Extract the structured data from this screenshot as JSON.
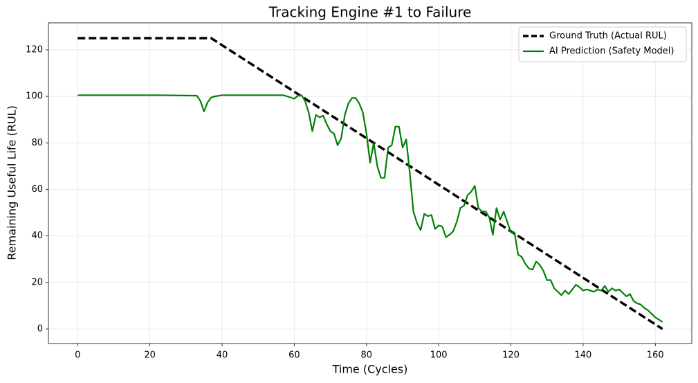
{
  "chart_data": {
    "type": "line",
    "title": "Tracking Engine #1 to Failure",
    "xlabel": "Time (Cycles)",
    "ylabel": "Remaining Useful Life (RUL)",
    "xlim": [
      -8.1,
      170.1
    ],
    "ylim": [
      -6.25,
      131.6
    ],
    "xticks": [
      0,
      20,
      40,
      60,
      80,
      100,
      120,
      140,
      160
    ],
    "yticks": [
      0,
      20,
      40,
      60,
      80,
      100,
      120
    ],
    "grid": true,
    "legend": "upper right",
    "series": [
      {
        "name": "Ground Truth (Actual RUL)",
        "color": "#000000",
        "linestyle": "dashed",
        "x": [
          0,
          37,
          162
        ],
        "values": [
          125,
          125,
          0
        ]
      },
      {
        "name": "AI Prediction (Safety Model)",
        "color": "#008000",
        "linestyle": "solid",
        "x": [
          0,
          23,
          33,
          34,
          35,
          36,
          37,
          38,
          40,
          57,
          58,
          60,
          61,
          62,
          63,
          64,
          65,
          66,
          67,
          68,
          69,
          70,
          71,
          72,
          73,
          74,
          75,
          76,
          77,
          78,
          79,
          80,
          81,
          82,
          83,
          84,
          85,
          86,
          87,
          88,
          89,
          90,
          91,
          92,
          93,
          94,
          95,
          96,
          97,
          98,
          99,
          100,
          101,
          102,
          103,
          104,
          105,
          106,
          107,
          108,
          109,
          110,
          111,
          112,
          113,
          114,
          115,
          116,
          117,
          118,
          119,
          120,
          121,
          122,
          123,
          124,
          125,
          126,
          127,
          128,
          129,
          130,
          131,
          132,
          133,
          134,
          135,
          136,
          137,
          138,
          139,
          140,
          141,
          142,
          143,
          144,
          145,
          146,
          147,
          148,
          149,
          150,
          151,
          152,
          153,
          154,
          155,
          156,
          157,
          158,
          159,
          160,
          161,
          162
        ],
        "values": [
          100.5,
          100.5,
          100.3,
          98,
          93.5,
          97.5,
          99.5,
          100,
          100.5,
          100.5,
          100,
          99,
          100.3,
          100.5,
          98,
          93,
          85,
          92,
          91,
          91.7,
          88,
          85,
          84,
          79,
          82,
          92,
          97,
          99.3,
          99.3,
          97,
          93,
          84,
          71.5,
          80,
          70,
          65,
          65,
          78,
          79,
          87,
          87,
          78,
          81.5,
          67,
          50.5,
          45.5,
          42.5,
          49.5,
          48.5,
          49,
          43,
          44.5,
          44,
          39.5,
          40.5,
          42,
          46,
          52,
          53,
          57.5,
          59,
          61.5,
          52,
          50.5,
          50.5,
          48,
          40.5,
          52,
          47,
          50.5,
          46,
          41.5,
          41.5,
          32,
          31,
          28,
          26,
          25.5,
          29,
          27.5,
          25,
          21,
          21,
          17.5,
          16,
          14.5,
          16.5,
          15,
          17,
          19,
          18,
          16.5,
          17,
          16.5,
          16,
          17,
          16.5,
          18.5,
          16,
          17.5,
          16.5,
          17,
          15.5,
          14,
          15,
          12,
          11,
          10.5,
          9,
          8,
          6.5,
          5,
          4,
          3
        ]
      }
    ]
  }
}
